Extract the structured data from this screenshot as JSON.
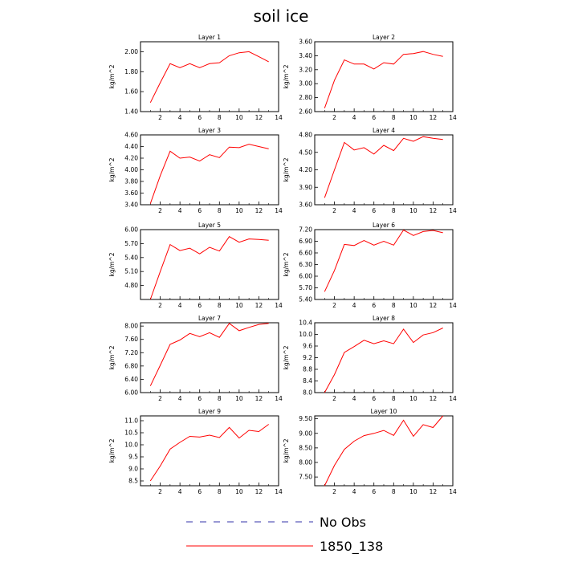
{
  "title": "soil ice",
  "legend": [
    {
      "label": "No Obs",
      "color": "#3333aa",
      "dash": "dashed"
    },
    {
      "label": "1850_138",
      "color": "#ff0000",
      "dash": "solid"
    }
  ],
  "chart_data": [
    {
      "type": "line",
      "title": "Layer 1",
      "ylabel": "kg/m^2",
      "xlim": [
        0,
        14
      ],
      "xticks": [
        2,
        4,
        6,
        8,
        10,
        12,
        14
      ],
      "ylim": [
        1.4,
        2.1
      ],
      "yticks": [
        "1.40",
        "1.60",
        "1.80",
        "2.00"
      ],
      "series": [
        {
          "name": "1850_138",
          "color": "#ff0000",
          "x": [
            1,
            2,
            3,
            4,
            5,
            6,
            7,
            8,
            9,
            10,
            11,
            12,
            13
          ],
          "y": [
            1.49,
            1.69,
            1.88,
            1.84,
            1.88,
            1.84,
            1.88,
            1.89,
            1.96,
            1.99,
            2.0,
            1.95,
            1.9
          ]
        }
      ]
    },
    {
      "type": "line",
      "title": "Layer 2",
      "ylabel": "kg/m^2",
      "xlim": [
        0,
        14
      ],
      "xticks": [
        2,
        4,
        6,
        8,
        10,
        12,
        14
      ],
      "ylim": [
        2.6,
        3.6
      ],
      "yticks": [
        "2.60",
        "2.80",
        "3.00",
        "3.20",
        "3.40",
        "3.60"
      ],
      "series": [
        {
          "name": "1850_138",
          "color": "#ff0000",
          "x": [
            1,
            2,
            3,
            4,
            5,
            6,
            7,
            8,
            9,
            10,
            11,
            12,
            13
          ],
          "y": [
            2.65,
            3.05,
            3.34,
            3.28,
            3.28,
            3.21,
            3.3,
            3.28,
            3.42,
            3.43,
            3.46,
            3.42,
            3.39
          ]
        }
      ]
    },
    {
      "type": "line",
      "title": "Layer 3",
      "ylabel": "kg/m^2",
      "xlim": [
        0,
        14
      ],
      "xticks": [
        2,
        4,
        6,
        8,
        10,
        12,
        14
      ],
      "ylim": [
        3.4,
        4.6
      ],
      "yticks": [
        "3.40",
        "3.60",
        "3.80",
        "4.00",
        "4.20",
        "4.40",
        "4.60"
      ],
      "series": [
        {
          "name": "1850_138",
          "color": "#ff0000",
          "x": [
            1,
            2,
            3,
            4,
            5,
            6,
            7,
            8,
            9,
            10,
            11,
            12,
            13
          ],
          "y": [
            3.42,
            3.9,
            4.32,
            4.2,
            4.22,
            4.15,
            4.26,
            4.21,
            4.39,
            4.38,
            4.44,
            4.4,
            4.36
          ]
        }
      ]
    },
    {
      "type": "line",
      "title": "Layer 4",
      "ylabel": "kg/m^2",
      "xlim": [
        0,
        14
      ],
      "xticks": [
        2,
        4,
        6,
        8,
        10,
        12,
        14
      ],
      "ylim": [
        3.6,
        4.8
      ],
      "yticks": [
        "3.60",
        "3.90",
        "4.20",
        "4.50",
        "4.80"
      ],
      "series": [
        {
          "name": "1850_138",
          "color": "#ff0000",
          "x": [
            1,
            2,
            3,
            4,
            5,
            6,
            7,
            8,
            9,
            10,
            11,
            12,
            13
          ],
          "y": [
            3.72,
            4.2,
            4.67,
            4.54,
            4.58,
            4.47,
            4.62,
            4.53,
            4.74,
            4.69,
            4.77,
            4.74,
            4.72
          ]
        }
      ]
    },
    {
      "type": "line",
      "title": "Layer 5",
      "ylabel": "kg/m^2",
      "xlim": [
        0,
        14
      ],
      "xticks": [
        2,
        4,
        6,
        8,
        10,
        12,
        14
      ],
      "ylim": [
        4.5,
        6.0
      ],
      "yticks": [
        "4.80",
        "5.10",
        "5.40",
        "5.70",
        "6.00"
      ],
      "series": [
        {
          "name": "1850_138",
          "color": "#ff0000",
          "x": [
            1,
            2,
            3,
            4,
            5,
            6,
            7,
            8,
            9,
            10,
            11,
            12,
            13
          ],
          "y": [
            4.5,
            5.1,
            5.68,
            5.55,
            5.6,
            5.48,
            5.62,
            5.54,
            5.85,
            5.73,
            5.8,
            5.79,
            5.77
          ]
        }
      ]
    },
    {
      "type": "line",
      "title": "Layer 6",
      "ylabel": "kg/m^2",
      "xlim": [
        0,
        14
      ],
      "xticks": [
        2,
        4,
        6,
        8,
        10,
        12,
        14
      ],
      "ylim": [
        5.4,
        7.2
      ],
      "yticks": [
        "5.40",
        "5.70",
        "6.00",
        "6.30",
        "6.60",
        "6.90",
        "7.20"
      ],
      "series": [
        {
          "name": "1850_138",
          "color": "#ff0000",
          "x": [
            1,
            2,
            3,
            4,
            5,
            6,
            7,
            8,
            9,
            10,
            11,
            12,
            13
          ],
          "y": [
            5.6,
            6.15,
            6.82,
            6.79,
            6.92,
            6.8,
            6.9,
            6.8,
            7.19,
            7.05,
            7.15,
            7.18,
            7.12
          ]
        }
      ]
    },
    {
      "type": "line",
      "title": "Layer 7",
      "ylabel": "kg/m^2",
      "xlim": [
        0,
        14
      ],
      "xticks": [
        2,
        4,
        6,
        8,
        10,
        12,
        14
      ],
      "ylim": [
        6.0,
        8.1
      ],
      "yticks": [
        "6.00",
        "6.40",
        "6.80",
        "7.20",
        "7.60",
        "8.00"
      ],
      "series": [
        {
          "name": "1850_138",
          "color": "#ff0000",
          "x": [
            1,
            2,
            3,
            4,
            5,
            6,
            7,
            8,
            9,
            10,
            11,
            12,
            13
          ],
          "y": [
            6.2,
            6.82,
            7.45,
            7.58,
            7.78,
            7.68,
            7.8,
            7.66,
            8.08,
            7.86,
            7.96,
            8.05,
            8.08
          ]
        }
      ]
    },
    {
      "type": "line",
      "title": "Layer 8",
      "ylabel": "kg/m^2",
      "xlim": [
        0,
        14
      ],
      "xticks": [
        2,
        4,
        6,
        8,
        10,
        12,
        14
      ],
      "ylim": [
        8.0,
        10.4
      ],
      "yticks": [
        "8.0",
        "8.4",
        "8.8",
        "9.2",
        "9.6",
        "10.0",
        "10.4"
      ],
      "series": [
        {
          "name": "1850_138",
          "color": "#ff0000",
          "x": [
            1,
            2,
            3,
            4,
            5,
            6,
            7,
            8,
            9,
            10,
            11,
            12,
            13
          ],
          "y": [
            8.0,
            8.62,
            9.38,
            9.58,
            9.8,
            9.68,
            9.78,
            9.68,
            10.18,
            9.72,
            9.98,
            10.06,
            10.22
          ]
        }
      ]
    },
    {
      "type": "line",
      "title": "Layer 9",
      "ylabel": "kg/m^2",
      "xlim": [
        0,
        14
      ],
      "xticks": [
        2,
        4,
        6,
        8,
        10,
        12,
        14
      ],
      "ylim": [
        8.3,
        11.2
      ],
      "yticks": [
        "8.5",
        "9.0",
        "9.5",
        "10.0",
        "10.5",
        "11.0"
      ],
      "series": [
        {
          "name": "1850_138",
          "color": "#ff0000",
          "x": [
            1,
            2,
            3,
            4,
            5,
            6,
            7,
            8,
            9,
            10,
            11,
            12,
            13
          ],
          "y": [
            8.5,
            9.12,
            9.82,
            10.1,
            10.35,
            10.32,
            10.4,
            10.3,
            10.72,
            10.28,
            10.6,
            10.55,
            10.85
          ]
        }
      ]
    },
    {
      "type": "line",
      "title": "Layer 10",
      "ylabel": "kg/m^2",
      "xlim": [
        0,
        14
      ],
      "xticks": [
        2,
        4,
        6,
        8,
        10,
        12,
        14
      ],
      "ylim": [
        7.2,
        9.6
      ],
      "yticks": [
        "7.50",
        "8.00",
        "8.50",
        "9.00",
        "9.50"
      ],
      "series": [
        {
          "name": "1850_138",
          "color": "#ff0000",
          "x": [
            1,
            2,
            3,
            4,
            5,
            6,
            7,
            8,
            9,
            10,
            11,
            12,
            13
          ],
          "y": [
            7.2,
            7.9,
            8.45,
            8.73,
            8.92,
            9.0,
            9.1,
            8.93,
            9.45,
            8.9,
            9.3,
            9.2,
            9.6
          ]
        }
      ]
    }
  ]
}
